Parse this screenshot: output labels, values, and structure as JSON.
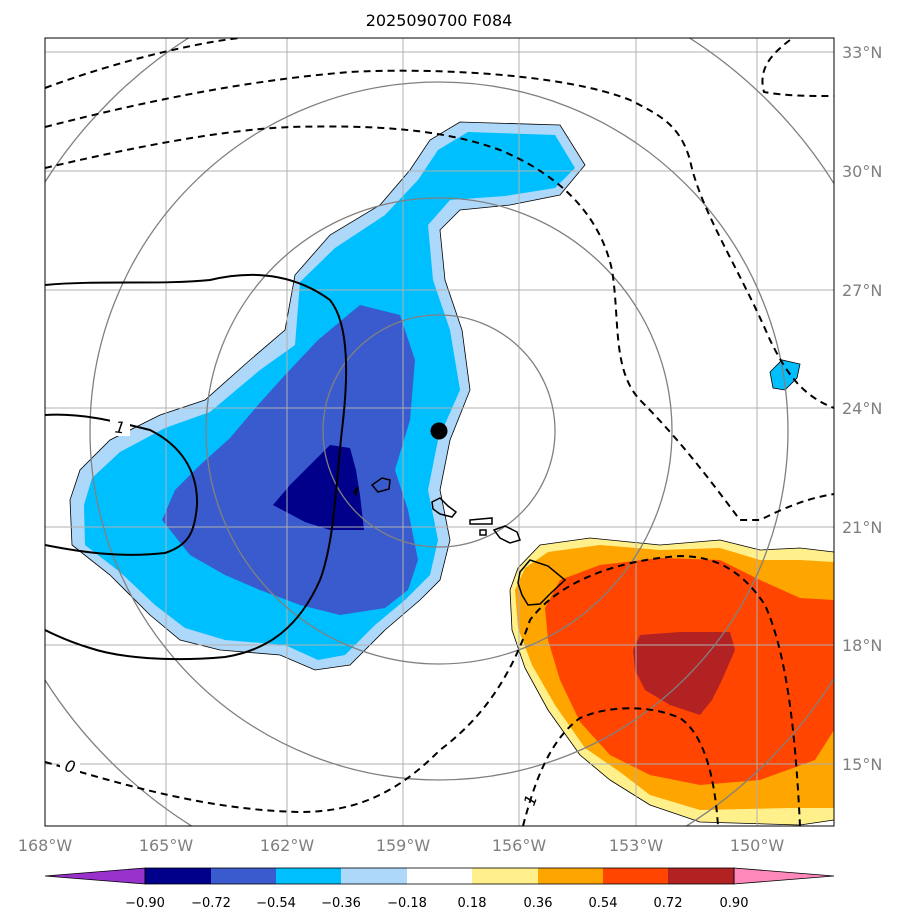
{
  "title": "2025090700 F084",
  "longitude_labels": [
    "168°W",
    "165°W",
    "162°W",
    "159°W",
    "156°W",
    "153°W",
    "150°W"
  ],
  "latitude_labels": [
    "33°N",
    "30°N",
    "27°N",
    "24°N",
    "21°N",
    "18°N",
    "15°N"
  ],
  "colorbar": {
    "ticks": [
      "−0.90",
      "−0.72",
      "−0.54",
      "−0.36",
      "−0.18",
      "0.18",
      "0.36",
      "0.54",
      "0.72",
      "0.90"
    ],
    "colors": [
      "#9932cc",
      "#00008b",
      "#3a5bcd",
      "#00bfff",
      "#add8fa",
      "#ffffff",
      "#fff08c",
      "#ffa500",
      "#ff4500",
      "#b22222",
      "#ff88bb"
    ]
  },
  "contour_labels": [
    "1",
    "0",
    "1"
  ],
  "chart_data": {
    "type": "map",
    "title": "2025090700 F084",
    "lon_range": [
      -168,
      -147.5
    ],
    "lat_range": [
      13.5,
      33.5
    ],
    "storm_center": {
      "lon": -157.9,
      "lat": 23.4
    },
    "colorbar_levels": [
      -0.9,
      -0.72,
      -0.54,
      -0.36,
      -0.18,
      0.18,
      0.36,
      0.54,
      0.72,
      0.9
    ]
  }
}
